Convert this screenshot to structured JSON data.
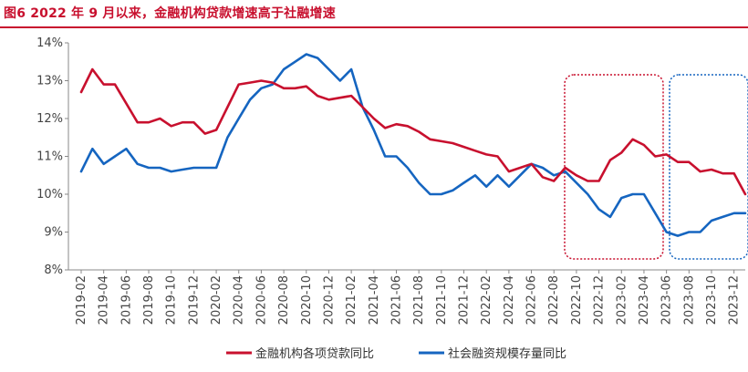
{
  "figure": {
    "title": "图6  2022 年 9 月以来，金融机构贷款增速高于社融增速"
  },
  "chart_data": {
    "type": "line",
    "ylim": [
      8,
      14
    ],
    "yticks": [
      8,
      9,
      10,
      11,
      12,
      13,
      14
    ],
    "ytick_labels": [
      "8%",
      "9%",
      "10%",
      "11%",
      "12%",
      "13%",
      "14%"
    ],
    "x_start": "2019-02",
    "x_ticklabels": [
      "2019-02",
      "2019-04",
      "2019-06",
      "2019-08",
      "2019-10",
      "2019-12",
      "2020-02",
      "2020-04",
      "2020-06",
      "2020-08",
      "2020-10",
      "2020-12",
      "2021-02",
      "2021-04",
      "2021-06",
      "2021-08",
      "2021-10",
      "2021-12",
      "2022-02",
      "2022-04",
      "2022-06",
      "2022-08",
      "2022-10",
      "2022-12",
      "2023-02",
      "2023-04",
      "2023-06",
      "2023-08",
      "2023-10",
      "2023-12"
    ],
    "grid": "none",
    "legend_position": "bottom",
    "series": [
      {
        "name": "金融机构各项贷款同比",
        "color": "#c8102e",
        "values": [
          12.7,
          13.3,
          12.9,
          12.9,
          12.4,
          11.9,
          11.9,
          12.0,
          11.8,
          11.9,
          11.9,
          11.6,
          11.7,
          12.3,
          12.9,
          12.95,
          13.0,
          12.95,
          12.8,
          12.8,
          12.85,
          12.6,
          12.5,
          12.55,
          12.6,
          12.3,
          12.0,
          11.75,
          11.85,
          11.8,
          11.65,
          11.45,
          11.4,
          11.35,
          11.25,
          11.15,
          11.05,
          11.0,
          10.6,
          10.7,
          10.8,
          10.45,
          10.35,
          10.7,
          10.5,
          10.35,
          10.35,
          10.9,
          11.1,
          11.45,
          11.3,
          11.0,
          11.05,
          10.85,
          10.85,
          10.6,
          10.65,
          10.55,
          10.55,
          10.0
        ]
      },
      {
        "name": "社会融资规模存量同比",
        "color": "#1565c0",
        "values": [
          10.6,
          11.2,
          10.8,
          11.0,
          11.2,
          10.8,
          10.7,
          10.7,
          10.6,
          10.65,
          10.7,
          10.7,
          10.7,
          11.5,
          12.0,
          12.5,
          12.8,
          12.9,
          13.3,
          13.5,
          13.7,
          13.6,
          13.3,
          13.0,
          13.3,
          12.3,
          11.7,
          11.0,
          11.0,
          10.7,
          10.3,
          10.0,
          10.0,
          10.1,
          10.3,
          10.5,
          10.2,
          10.5,
          10.2,
          10.5,
          10.8,
          10.7,
          10.5,
          10.6,
          10.3,
          10.0,
          9.6,
          9.4,
          9.9,
          10.0,
          10.0,
          9.5,
          9.0,
          8.9,
          9.0,
          9.0,
          9.3,
          9.4,
          9.5,
          9.5
        ]
      }
    ]
  },
  "annotations": {
    "red_box_label": "",
    "blue_box_label": ""
  }
}
